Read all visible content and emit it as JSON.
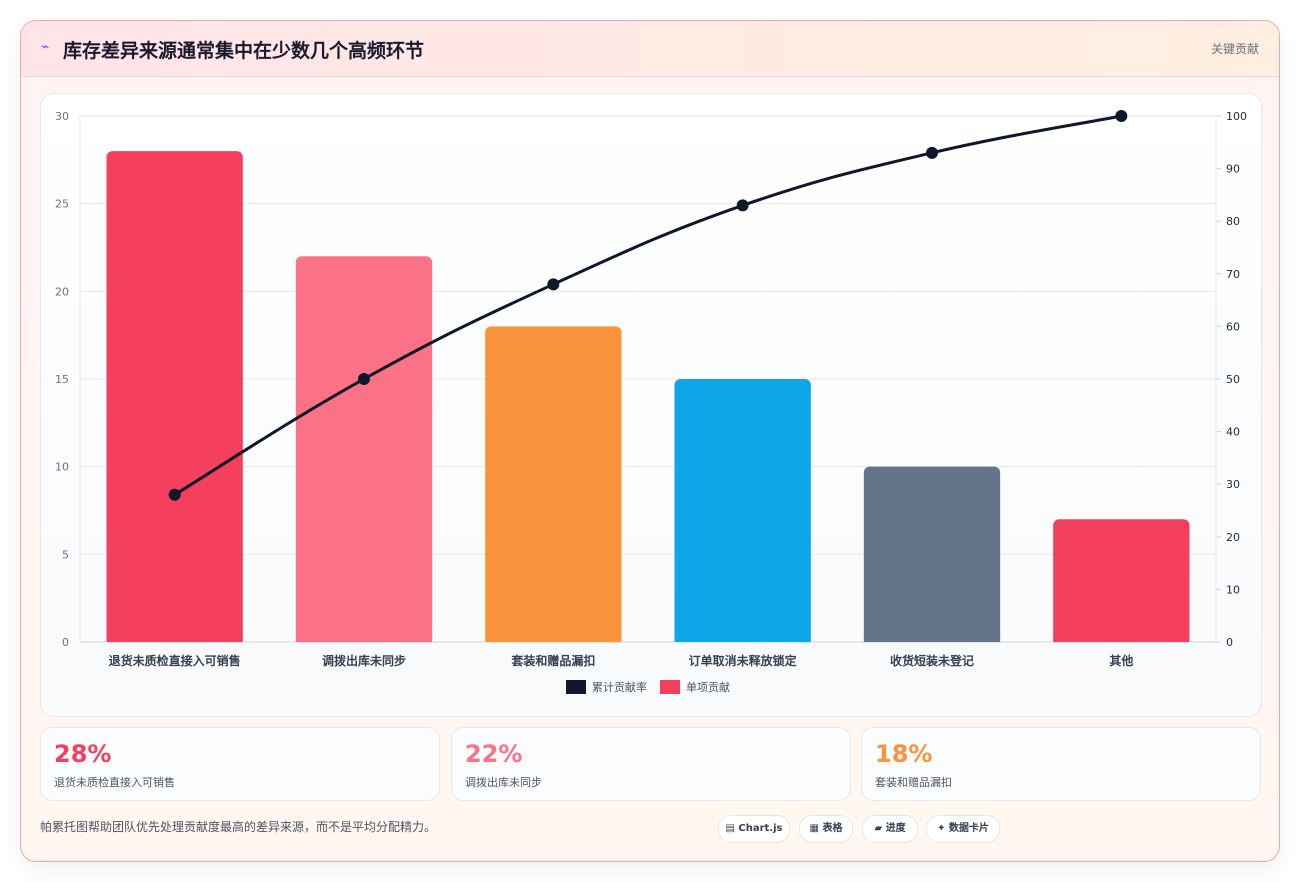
{
  "header": {
    "icon": "⌁",
    "title": "库存差异来源通常集中在少数几个高频环节",
    "tag": "关键贡献"
  },
  "chart_data": {
    "type": "bar",
    "categories": [
      "退货未质检直接入可销售",
      "调拨出库未同步",
      "套装和赠品漏扣",
      "订单取消未释放锁定",
      "收货短装未登记",
      "其他"
    ],
    "series": [
      {
        "name": "单项贡献",
        "type": "bar",
        "axis": "left",
        "values": [
          28,
          22,
          18,
          15,
          10,
          7
        ],
        "colors": [
          "#f43f5e",
          "#fb7185",
          "#fb923c",
          "#0ea5e9",
          "#64748b",
          "#f43f5e"
        ]
      },
      {
        "name": "累计贡献率",
        "type": "line",
        "axis": "right",
        "values": [
          28,
          50,
          68,
          83,
          93,
          100
        ],
        "color": "#0f172a"
      }
    ],
    "y_left": {
      "min": 0,
      "max": 30,
      "ticks": [
        "0",
        "5",
        "10",
        "15",
        "20",
        "25",
        "30"
      ]
    },
    "y_right": {
      "min": 0,
      "max": 100,
      "ticks": [
        "0",
        "10",
        "20",
        "30",
        "40",
        "50",
        "60",
        "70",
        "80",
        "90",
        "100"
      ]
    },
    "legend": {
      "position": "bottom",
      "items": [
        {
          "label": "累计贡献率",
          "color": "#0f172a"
        },
        {
          "label": "单项贡献",
          "color": "#f43f5e"
        }
      ]
    },
    "grid": true
  },
  "kpis": [
    {
      "value": "28%",
      "label": "退货未质检直接入可销售",
      "color": "#f43f5e"
    },
    {
      "value": "22%",
      "label": "调拨出库未同步",
      "color": "#fb7185"
    },
    {
      "value": "18%",
      "label": "套装和赠品漏扣",
      "color": "#fb923c"
    }
  ],
  "footer": {
    "note": "帕累托图帮助团队优先处理贡献度最高的差异来源，而不是平均分配精力。",
    "chips": [
      {
        "label": "▤ Chart.js"
      },
      {
        "label": "▦ 表格"
      },
      {
        "label": "▰ 进度"
      },
      {
        "label": "✦ 数据卡片"
      }
    ]
  }
}
